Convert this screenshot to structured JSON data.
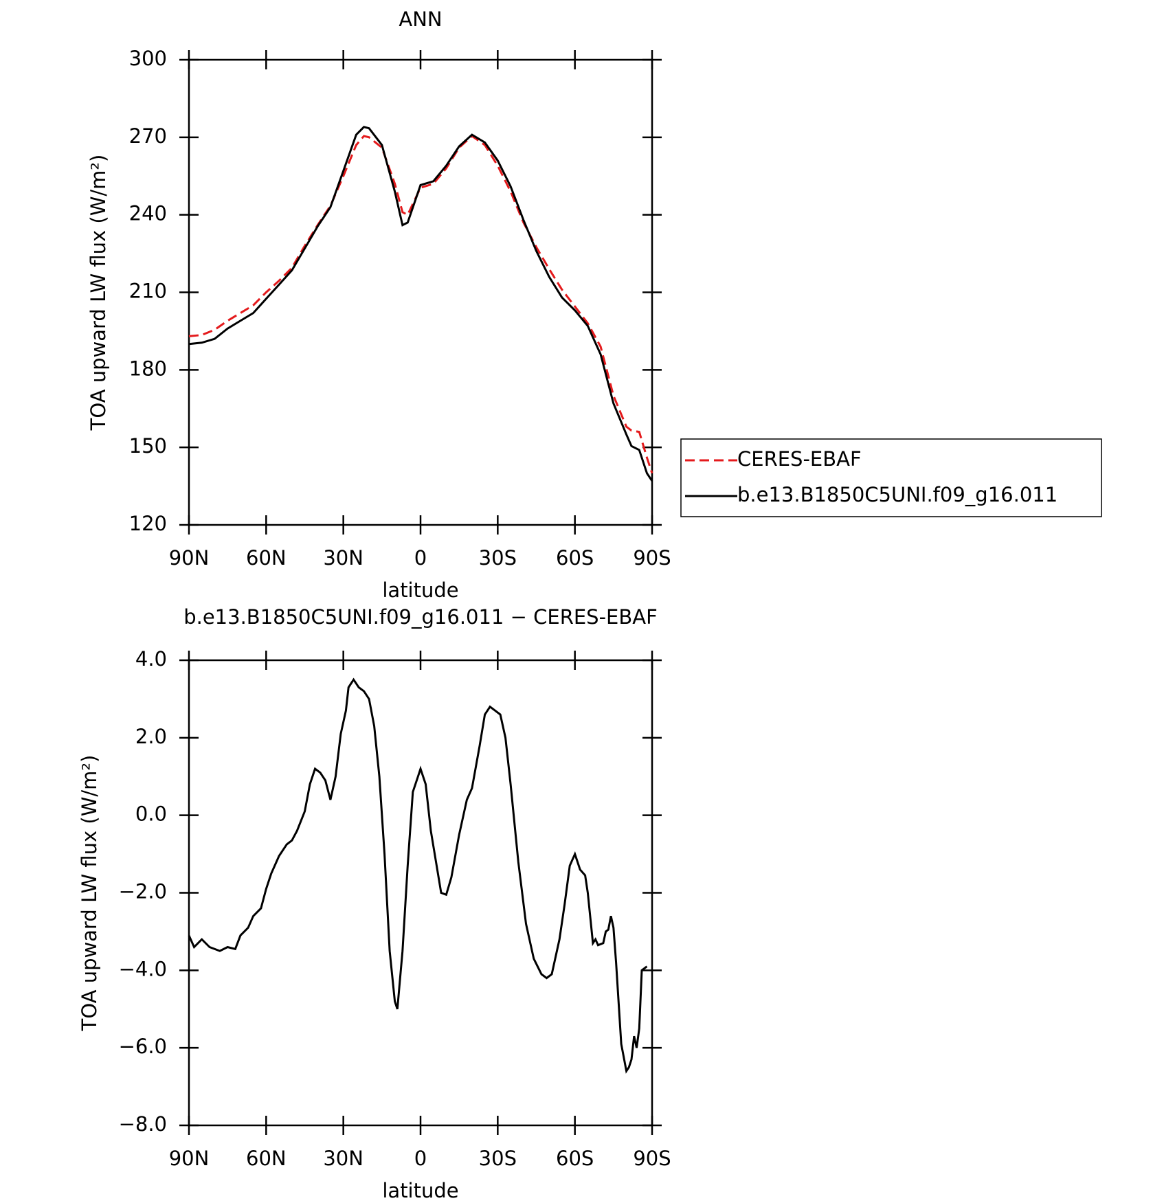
{
  "chart_data": [
    {
      "type": "line",
      "title": "ANN",
      "xlabel": "latitude",
      "ylabel": "TOA upward LW flux (W/m²)",
      "x": [
        90,
        85,
        80,
        75,
        70,
        65,
        60,
        55,
        50,
        45,
        40,
        35,
        30,
        25,
        22,
        20,
        15,
        10,
        7,
        5,
        0,
        -5,
        -10,
        -15,
        -20,
        -25,
        -30,
        -35,
        -40,
        -45,
        -50,
        -55,
        -60,
        -65,
        -70,
        -75,
        -80,
        -82,
        -85,
        -88,
        -90
      ],
      "series": [
        {
          "name": "CERES-EBAF",
          "color": "#e41a1c",
          "linestyle": "dashed",
          "values": [
            193,
            193.5,
            195.5,
            199,
            202,
            205,
            210,
            214.5,
            219.5,
            228,
            236,
            243.5,
            255,
            267,
            270.5,
            270,
            266,
            252,
            241,
            240,
            250.5,
            252,
            258,
            266,
            270.5,
            267,
            259,
            249,
            237,
            227.5,
            219,
            211,
            204.5,
            198,
            189,
            170,
            158,
            156.5,
            156,
            146,
            140
          ]
        },
        {
          "name": "b.e13.B1850C5UNI.f09_g16.011",
          "color": "#000000",
          "linestyle": "solid",
          "values": [
            190,
            190.5,
            192,
            196,
            199,
            202,
            207.5,
            213,
            218.5,
            227,
            235.5,
            243,
            257,
            271,
            274,
            273.5,
            267,
            249,
            236,
            237,
            251.5,
            253,
            259,
            266.5,
            271,
            268,
            261,
            251,
            238,
            226,
            216,
            208,
            203,
            197,
            186,
            167,
            155,
            150.5,
            149,
            140,
            137
          ]
        }
      ],
      "xlim": [
        90,
        -90
      ],
      "xticks": [
        {
          "value": 90,
          "label": "90N"
        },
        {
          "value": 60,
          "label": "60N"
        },
        {
          "value": 30,
          "label": "30N"
        },
        0,
        {
          "value": -30,
          "label": "30S"
        },
        {
          "value": -60,
          "label": "60S"
        },
        {
          "value": -90,
          "label": "90S"
        }
      ],
      "ylim": [
        120,
        300
      ],
      "yticks": [
        120,
        150,
        180,
        210,
        240,
        270,
        300
      ],
      "legend": "outside-right"
    },
    {
      "type": "line",
      "title": "b.e13.B1850C5UNI.f09_g16.011 − CERES-EBAF",
      "xlabel": "latitude",
      "ylabel": "TOA upward LW flux (W/m²)",
      "x": [
        90,
        88,
        85,
        82,
        78,
        75,
        72,
        70,
        67,
        65,
        62,
        60,
        58,
        55,
        52,
        50,
        48,
        45,
        43,
        41,
        39,
        37,
        35,
        33,
        31,
        29,
        28,
        26,
        24,
        22,
        20,
        18,
        16,
        14,
        12,
        10,
        9,
        7,
        5,
        3,
        1,
        0,
        -2,
        -4,
        -6,
        -8,
        -10,
        -12,
        -15,
        -18,
        -20,
        -23,
        -25,
        -27,
        -29,
        -31,
        -33,
        -35,
        -38,
        -41,
        -44,
        -47,
        -49,
        -51,
        -54,
        -56,
        -58,
        -60,
        -62,
        -64,
        -65,
        -67,
        -68,
        -69,
        -71,
        -72,
        -73,
        -74,
        -75,
        -76,
        -78,
        -80,
        -81,
        -82,
        -83,
        -84,
        -85,
        -86,
        -88
      ],
      "series": [
        {
          "name": null,
          "color": "#000000",
          "linestyle": "solid",
          "values": [
            -3.1,
            -3.4,
            -3.2,
            -3.4,
            -3.5,
            -3.4,
            -3.45,
            -3.1,
            -2.9,
            -2.6,
            -2.4,
            -1.9,
            -1.5,
            -1.05,
            -0.75,
            -0.65,
            -0.4,
            0.1,
            0.8,
            1.2,
            1.1,
            0.9,
            0.4,
            1.0,
            2.1,
            2.7,
            3.3,
            3.5,
            3.3,
            3.2,
            3.0,
            2.3,
            1.0,
            -1.0,
            -3.5,
            -4.8,
            -5.0,
            -3.5,
            -1.3,
            0.6,
            1.0,
            1.2,
            0.8,
            -0.4,
            -1.2,
            -2.0,
            -2.05,
            -1.6,
            -0.5,
            0.4,
            0.7,
            1.8,
            2.6,
            2.8,
            2.7,
            2.6,
            2.0,
            0.8,
            -1.2,
            -2.8,
            -3.7,
            -4.1,
            -4.2,
            -4.1,
            -3.2,
            -2.3,
            -1.3,
            -1.0,
            -1.4,
            -1.55,
            -2.0,
            -3.3,
            -3.2,
            -3.35,
            -3.3,
            -3.0,
            -2.95,
            -2.6,
            -2.9,
            -3.8,
            -5.9,
            -6.6,
            -6.5,
            -6.3,
            -5.7,
            -6.0,
            -5.5,
            -4.0,
            -3.9
          ]
        }
      ],
      "xlim": [
        90,
        -90
      ],
      "xticks": [
        {
          "value": 90,
          "label": "90N"
        },
        {
          "value": 60,
          "label": "60N"
        },
        {
          "value": 30,
          "label": "30N"
        },
        0,
        {
          "value": -30,
          "label": "30S"
        },
        {
          "value": -60,
          "label": "60S"
        },
        {
          "value": -90,
          "label": "90S"
        }
      ],
      "ylim": [
        -8,
        4
      ],
      "yticks": [
        {
          "value": -8,
          "label": "−8.0"
        },
        {
          "value": -6,
          "label": "−6.0"
        },
        {
          "value": -4,
          "label": "−4.0"
        },
        {
          "value": -2,
          "label": "−2.0"
        },
        {
          "value": 0,
          "label": "0.0"
        },
        {
          "value": 2,
          "label": "2.0"
        },
        {
          "value": 4,
          "label": "4.0"
        }
      ]
    }
  ]
}
